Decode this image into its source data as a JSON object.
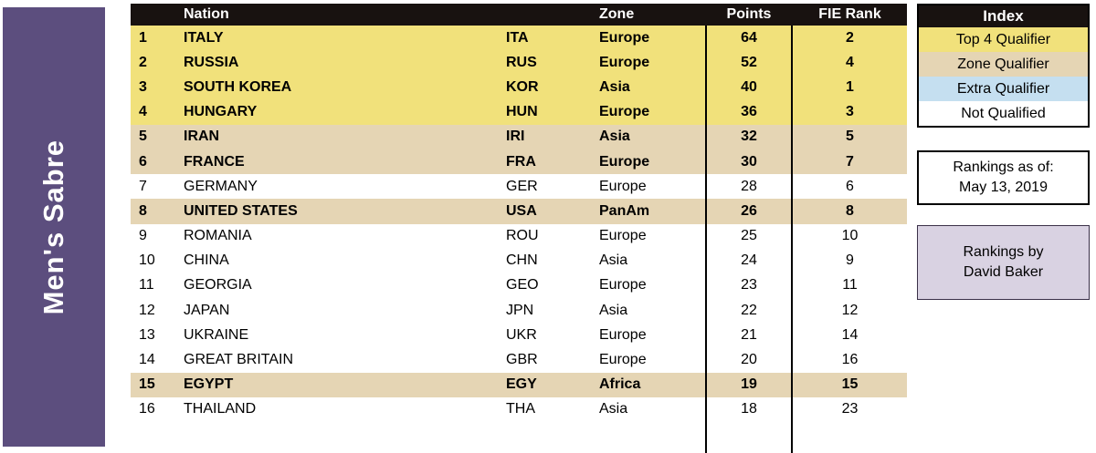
{
  "banner": {
    "title": "Men's Sabre"
  },
  "table": {
    "headers": {
      "rank": "",
      "nation": "Nation",
      "code": "",
      "zone": "Zone",
      "points": "Points",
      "fie_rank": "FIE Rank"
    },
    "rows": [
      {
        "rank": "1",
        "nation": "ITALY",
        "code": "ITA",
        "zone": "Europe",
        "points": "64",
        "fie_rank": "2",
        "status": "top4"
      },
      {
        "rank": "2",
        "nation": "RUSSIA",
        "code": "RUS",
        "zone": "Europe",
        "points": "52",
        "fie_rank": "4",
        "status": "top4"
      },
      {
        "rank": "3",
        "nation": "SOUTH KOREA",
        "code": "KOR",
        "zone": "Asia",
        "points": "40",
        "fie_rank": "1",
        "status": "top4"
      },
      {
        "rank": "4",
        "nation": "HUNGARY",
        "code": "HUN",
        "zone": "Europe",
        "points": "36",
        "fie_rank": "3",
        "status": "top4"
      },
      {
        "rank": "5",
        "nation": "IRAN",
        "code": "IRI",
        "zone": "Asia",
        "points": "32",
        "fie_rank": "5",
        "status": "zone"
      },
      {
        "rank": "6",
        "nation": "FRANCE",
        "code": "FRA",
        "zone": "Europe",
        "points": "30",
        "fie_rank": "7",
        "status": "zone"
      },
      {
        "rank": "7",
        "nation": "GERMANY",
        "code": "GER",
        "zone": "Europe",
        "points": "28",
        "fie_rank": "6",
        "status": "none"
      },
      {
        "rank": "8",
        "nation": "UNITED STATES",
        "code": "USA",
        "zone": "PanAm",
        "points": "26",
        "fie_rank": "8",
        "status": "zone"
      },
      {
        "rank": "9",
        "nation": "ROMANIA",
        "code": "ROU",
        "zone": "Europe",
        "points": "25",
        "fie_rank": "10",
        "status": "none"
      },
      {
        "rank": "10",
        "nation": "CHINA",
        "code": "CHN",
        "zone": "Asia",
        "points": "24",
        "fie_rank": "9",
        "status": "none"
      },
      {
        "rank": "11",
        "nation": "GEORGIA",
        "code": "GEO",
        "zone": "Europe",
        "points": "23",
        "fie_rank": "11",
        "status": "none"
      },
      {
        "rank": "12",
        "nation": "JAPAN",
        "code": "JPN",
        "zone": "Asia",
        "points": "22",
        "fie_rank": "12",
        "status": "none"
      },
      {
        "rank": "13",
        "nation": "UKRAINE",
        "code": "UKR",
        "zone": "Europe",
        "points": "21",
        "fie_rank": "14",
        "status": "none"
      },
      {
        "rank": "14",
        "nation": "GREAT BRITAIN",
        "code": "GBR",
        "zone": "Europe",
        "points": "20",
        "fie_rank": "16",
        "status": "none"
      },
      {
        "rank": "15",
        "nation": "EGYPT",
        "code": "EGY",
        "zone": "Africa",
        "points": "19",
        "fie_rank": "15",
        "status": "zone"
      },
      {
        "rank": "16",
        "nation": "THAILAND",
        "code": "THA",
        "zone": "Asia",
        "points": "18",
        "fie_rank": "23",
        "status": "none"
      }
    ]
  },
  "index_legend": {
    "title": "Index",
    "items": [
      {
        "label": "Top 4 Qualifier",
        "color": "#F1E17B"
      },
      {
        "label": "Zone Qualifier",
        "color": "#E5D5B4"
      },
      {
        "label": "Extra Qualifier",
        "color": "#C5DFF0"
      },
      {
        "label": "Not Qualified",
        "color": "#FFFFFF"
      }
    ]
  },
  "info_boxes": {
    "rankings_as_of": {
      "line1": "Rankings as of:",
      "line2": "May 13, 2019"
    },
    "rankings_by": {
      "line1": "Rankings by",
      "line2": "David Baker"
    }
  },
  "colors": {
    "banner_purple": "#5C4E7E",
    "header_black": "#181210",
    "top4_yellow": "#F1E17B",
    "zone_tan": "#E5D5B4",
    "extra_blue": "#C5DFF0",
    "not_qualified_white": "#FFFFFF",
    "rankings_by_lavender": "#D9D2E2"
  }
}
